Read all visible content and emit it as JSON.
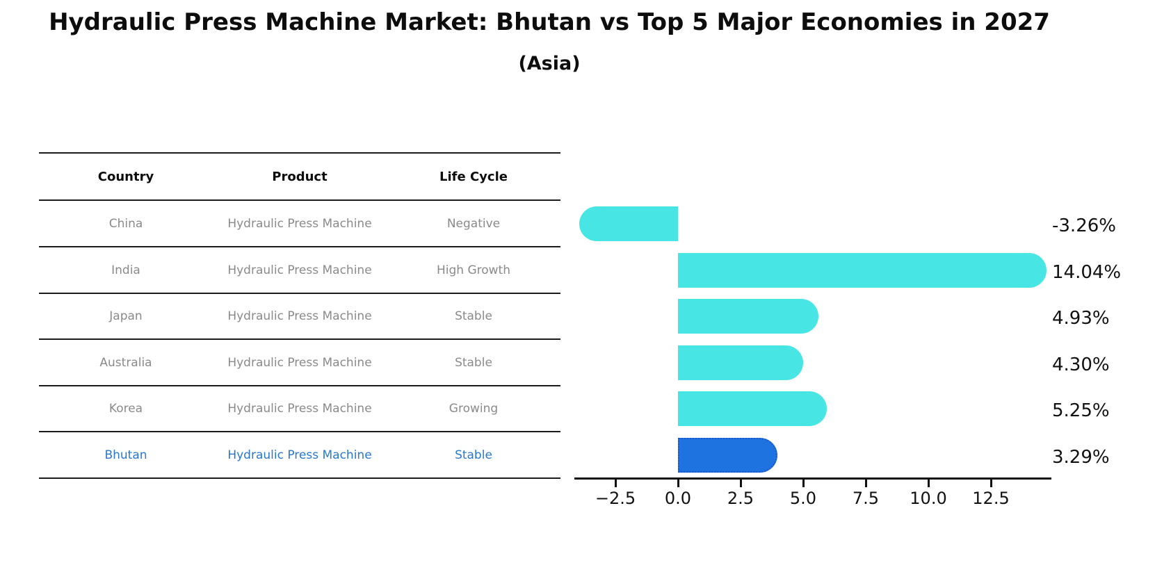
{
  "header": {
    "title": "Hydraulic Press Machine Market: Bhutan vs Top 5 Major Economies in 2027",
    "subtitle": "(Asia)"
  },
  "table": {
    "columns": [
      "Country",
      "Product",
      "Life Cycle"
    ],
    "rows": [
      {
        "country": "China",
        "product": "Hydraulic Press Machine",
        "life_cycle": "Negative",
        "highlight": false
      },
      {
        "country": "India",
        "product": "Hydraulic Press Machine",
        "life_cycle": "High Growth",
        "highlight": false
      },
      {
        "country": "Japan",
        "product": "Hydraulic Press Machine",
        "life_cycle": "Stable",
        "highlight": false
      },
      {
        "country": "Australia",
        "product": "Hydraulic Press Machine",
        "life_cycle": "Stable",
        "highlight": false
      },
      {
        "country": "Korea",
        "product": "Hydraulic Press Machine",
        "life_cycle": "Growing",
        "highlight": false
      },
      {
        "country": "Bhutan",
        "product": "Hydraulic Press Machine",
        "life_cycle": "Stable",
        "highlight": true
      }
    ]
  },
  "chart_data": {
    "type": "bar",
    "orientation": "horizontal",
    "title": "Hydraulic Press Machine Market: Bhutan vs Top 5 Major Economies in 2027",
    "subtitle": "(Asia)",
    "categories": [
      "China",
      "India",
      "Japan",
      "Australia",
      "Korea",
      "Bhutan"
    ],
    "values": [
      -3.26,
      14.04,
      4.93,
      4.3,
      5.25,
      3.29
    ],
    "value_labels": [
      "-3.26%",
      "14.04%",
      "4.93%",
      "4.30%",
      "5.25%",
      "3.29%"
    ],
    "x_tick_values": [
      -2.5,
      0,
      2.5,
      5,
      7.5,
      10,
      12.5
    ],
    "x_tick_labels": [
      "−2.5",
      "0.0",
      "2.5",
      "5.0",
      "7.5",
      "10.0",
      "12.5"
    ],
    "xlim": [
      -4.15,
      14.9
    ],
    "grid": false,
    "legend": "none",
    "highlight_index": 5
  },
  "colors": {
    "bar": "#48e5e5",
    "highlight_bar": "#1e73e0",
    "highlight_border": "#1a55cc",
    "highlight_text": "#2878cd",
    "table_text": "#8a8a8a",
    "axis": "#111111"
  }
}
